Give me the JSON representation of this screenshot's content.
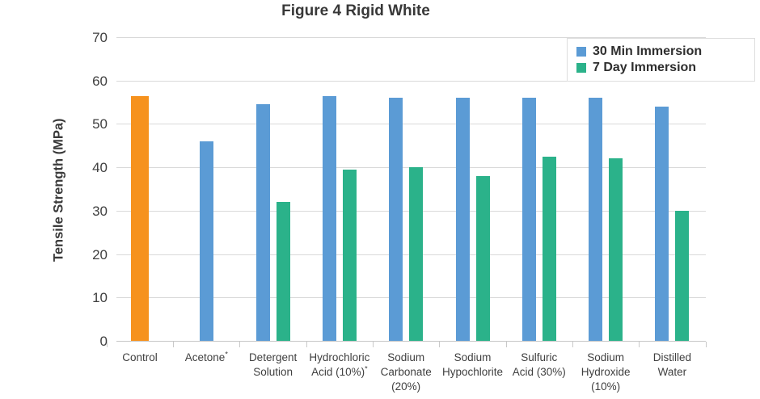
{
  "chart_data": {
    "type": "bar",
    "title": "Figure 4 Rigid White",
    "xlabel": "",
    "ylabel": "Tensile Strength (MPa)",
    "ylim": [
      0,
      70
    ],
    "yticks": [
      0,
      10,
      20,
      30,
      40,
      50,
      60,
      70
    ],
    "grid": true,
    "legend_position": "top-right",
    "legend": [
      {
        "label": "30 Min Immersion",
        "color": "#5B9BD5"
      },
      {
        "label": "7 Day Immersion",
        "color": "#2BB28A"
      }
    ],
    "categories": [
      "Control",
      "Acetone*",
      "Detergent Solution",
      "Hydrochloric Acid (10%)*",
      "Sodium Carbonate (20%)",
      "Sodium Hypochlorite",
      "Sulfuric Acid (30%)",
      "Sodium Hydroxide (10%)",
      "Distilled Water"
    ],
    "category_label_lines": [
      [
        "Control"
      ],
      [
        "Acetone*"
      ],
      [
        "Detergent",
        "Solution"
      ],
      [
        "Hydrochloric",
        "Acid (10%)*"
      ],
      [
        "Sodium",
        "Carbonate",
        "(20%)"
      ],
      [
        "Sodium",
        "Hypochlorite"
      ],
      [
        "Sulfuric",
        "Acid (30%)"
      ],
      [
        "Sodium",
        "Hydroxide",
        "(10%)"
      ],
      [
        "Distilled",
        "Water"
      ]
    ],
    "series": [
      {
        "name": "Control",
        "color": "#F6921E",
        "values": [
          56.5,
          null,
          null,
          null,
          null,
          null,
          null,
          null,
          null
        ]
      },
      {
        "name": "30 Min Immersion",
        "color": "#5B9BD5",
        "values": [
          null,
          46,
          54.5,
          56.5,
          56,
          56,
          56,
          56,
          54
        ]
      },
      {
        "name": "7 Day Immersion",
        "color": "#2BB28A",
        "values": [
          null,
          null,
          32,
          39.5,
          40,
          38,
          42.5,
          42,
          30
        ]
      }
    ]
  }
}
